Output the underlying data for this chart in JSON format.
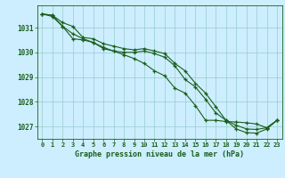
{
  "hours": [
    0,
    1,
    2,
    3,
    4,
    5,
    6,
    7,
    8,
    9,
    10,
    11,
    12,
    13,
    14,
    15,
    16,
    17,
    18,
    19,
    20,
    21,
    22,
    23
  ],
  "line_max": [
    1031.55,
    1031.5,
    1031.2,
    1031.05,
    1030.6,
    1030.55,
    1030.35,
    1030.25,
    1030.15,
    1030.1,
    1030.15,
    1030.05,
    1029.95,
    1029.55,
    1029.25,
    1028.75,
    1028.35,
    1027.8,
    1027.25,
    1027.05,
    1026.9,
    1026.88,
    1026.95,
    1027.25
  ],
  "line_mean": [
    1031.55,
    1031.5,
    1031.05,
    1030.75,
    1030.55,
    1030.4,
    1030.2,
    1030.05,
    1030.0,
    1030.0,
    1030.05,
    1029.95,
    1029.8,
    1029.45,
    1028.9,
    1028.6,
    1028.1,
    1027.55,
    1027.25,
    1026.9,
    1026.75,
    1026.73,
    1026.9,
    1027.25
  ],
  "line_min": [
    1031.55,
    1031.45,
    1031.05,
    1030.55,
    1030.5,
    1030.4,
    1030.15,
    1030.05,
    1029.9,
    1029.75,
    1029.55,
    1029.25,
    1029.05,
    1028.55,
    1028.35,
    1027.85,
    1027.25,
    1027.25,
    1027.2,
    1027.18,
    1027.15,
    1027.1,
    1026.95,
    1027.25
  ],
  "ylim_min": 1026.5,
  "ylim_max": 1031.9,
  "yticks": [
    1027,
    1028,
    1029,
    1030,
    1031
  ],
  "bg_color": "#cceeff",
  "grid_color": "#99cccc",
  "line_color": "#1a5e1a",
  "xlabel": "Graphe pression niveau de la mer (hPa)",
  "xlabel_color": "#1a5e1a",
  "tick_color": "#1a5e1a",
  "line_width": 0.8,
  "marker": "+",
  "marker_size": 3.5,
  "marker_edge_width": 0.9
}
